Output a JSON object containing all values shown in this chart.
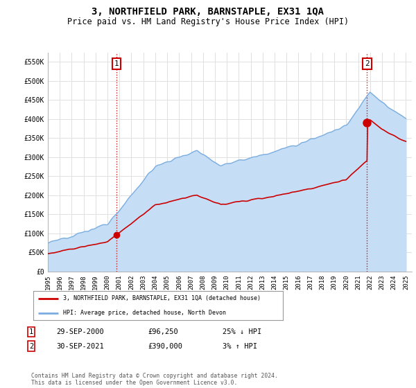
{
  "title": "3, NORTHFIELD PARK, BARNSTAPLE, EX31 1QA",
  "subtitle": "Price paid vs. HM Land Registry's House Price Index (HPI)",
  "title_fontsize": 10,
  "subtitle_fontsize": 8.5,
  "ylabel_ticks": [
    "£0",
    "£50K",
    "£100K",
    "£150K",
    "£200K",
    "£250K",
    "£300K",
    "£350K",
    "£400K",
    "£450K",
    "£500K",
    "£550K"
  ],
  "ytick_values": [
    0,
    50000,
    100000,
    150000,
    200000,
    250000,
    300000,
    350000,
    400000,
    450000,
    500000,
    550000
  ],
  "ylim": [
    0,
    575000
  ],
  "xlim_min": 1995.0,
  "xlim_max": 2025.5,
  "xtick_years": [
    1995,
    1996,
    1997,
    1998,
    1999,
    2000,
    2001,
    2002,
    2003,
    2004,
    2005,
    2006,
    2007,
    2008,
    2009,
    2010,
    2011,
    2012,
    2013,
    2014,
    2015,
    2016,
    2017,
    2018,
    2019,
    2020,
    2021,
    2022,
    2023,
    2024,
    2025
  ],
  "purchase1_x": 2000.75,
  "purchase1_y": 96250,
  "purchase1_date": "29-SEP-2000",
  "purchase1_price": "£96,250",
  "purchase1_hpi": "25% ↓ HPI",
  "purchase2_x": 2021.75,
  "purchase2_y": 390000,
  "purchase2_date": "30-SEP-2021",
  "purchase2_price": "£390,000",
  "purchase2_hpi": "3% ↑ HPI",
  "legend_line1": "3, NORTHFIELD PARK, BARNSTAPLE, EX31 1QA (detached house)",
  "legend_line2": "HPI: Average price, detached house, North Devon",
  "footer": "Contains HM Land Registry data © Crown copyright and database right 2024.\nThis data is licensed under the Open Government Licence v3.0.",
  "red_color": "#cc0000",
  "blue_color": "#7aade0",
  "blue_fill_color": "#c5ddf5",
  "background_color": "#ffffff",
  "grid_color": "#e0e0e0"
}
